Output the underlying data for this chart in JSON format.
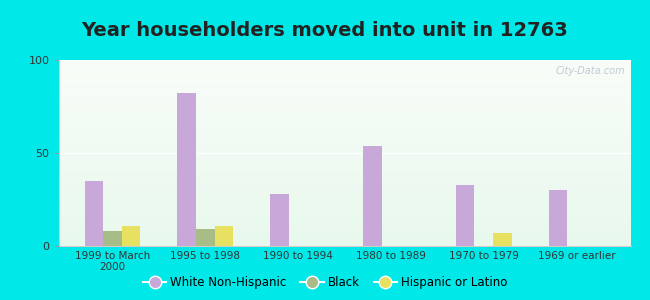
{
  "title": "Year householders moved into unit in 12763",
  "categories": [
    "1999 to March\n2000",
    "1995 to 1998",
    "1990 to 1994",
    "1980 to 1989",
    "1970 to 1979",
    "1969 or earlier"
  ],
  "white_non_hispanic": [
    35,
    82,
    28,
    54,
    33,
    30
  ],
  "black": [
    8,
    9,
    0,
    0,
    0,
    0
  ],
  "hispanic_or_latino": [
    11,
    11,
    0,
    0,
    7,
    0
  ],
  "bar_width": 0.2,
  "ylim": [
    0,
    100
  ],
  "yticks": [
    0,
    50,
    100
  ],
  "white_color": "#c8a8d8",
  "black_color": "#a8bc88",
  "hispanic_color": "#e8e060",
  "bg_outer": "#00e8e8",
  "title_fontsize": 14,
  "watermark": "City-Data.com",
  "legend_labels": [
    "White Non-Hispanic",
    "Black",
    "Hispanic or Latino"
  ]
}
